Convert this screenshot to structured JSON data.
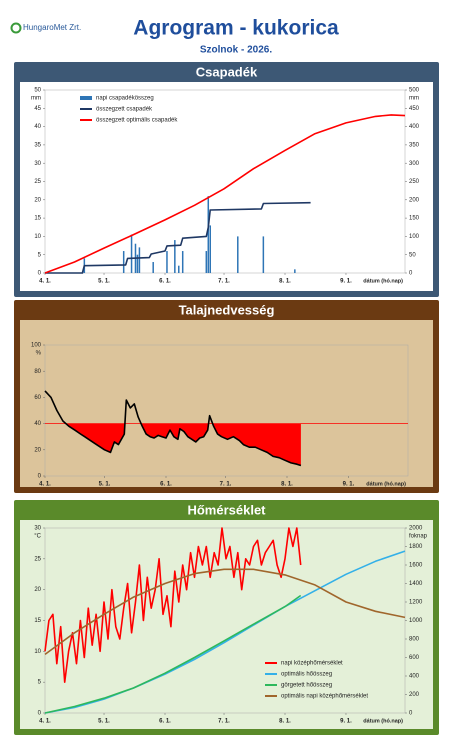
{
  "header": {
    "logo": "HungaroMet Zrt.",
    "title": "Agrogram - kukorica",
    "subtitle": "Szolnok - 2026."
  },
  "chart_data": [
    {
      "type": "combo",
      "title": "Csapadék",
      "frame_color": "#3d5875",
      "background": "#ffffff",
      "plot_background": "#ffffff",
      "xlim": [
        0,
        183
      ],
      "xticks": [
        {
          "value": 0,
          "label": "4. 1."
        },
        {
          "value": 30,
          "label": "5. 1."
        },
        {
          "value": 61,
          "label": "6. 1."
        },
        {
          "value": 91,
          "label": "7. 1."
        },
        {
          "value": 122,
          "label": "8. 1."
        },
        {
          "value": 153,
          "label": "9. 1."
        }
      ],
      "x_label": "dátum (hó.nap)",
      "y_unit": "mm",
      "y2_unit": "mm",
      "ylim": [
        0,
        50
      ],
      "yticks": [
        0,
        5,
        10,
        15,
        20,
        25,
        30,
        35,
        40,
        45,
        50
      ],
      "y2lim": [
        0,
        500
      ],
      "y2ticks": [
        0,
        50,
        100,
        150,
        200,
        250,
        300,
        350,
        400,
        450,
        500
      ],
      "legend": "top-left",
      "series": [
        {
          "name": "napi csapadékösszeg",
          "kind": "bar",
          "color": "#2e75b6",
          "x": [
            20,
            40,
            44,
            46,
            47,
            48,
            55,
            62,
            66,
            68,
            70,
            82,
            83,
            84,
            98,
            111,
            127
          ],
          "values": [
            4,
            6,
            10.5,
            8,
            5,
            7,
            3,
            6,
            9,
            2,
            6,
            6,
            21,
            13,
            10,
            10,
            1
          ]
        },
        {
          "name": "összegzett csapadék",
          "kind": "line",
          "axis": "y2",
          "color": "#1f3864",
          "x": [
            0,
            19,
            20,
            41,
            42,
            53,
            54,
            61,
            62,
            69,
            70,
            82,
            83,
            84,
            110,
            111,
            135
          ],
          "values": [
            0,
            0,
            20,
            22,
            40,
            42,
            52,
            60,
            74,
            76,
            95,
            100,
            125,
            172,
            175,
            190,
            192
          ]
        },
        {
          "name": "összegzett optimális csapadék",
          "kind": "line",
          "axis": "y2",
          "color": "#ff0000",
          "x": [
            0,
            15,
            30,
            45,
            61,
            76,
            91,
            106,
            122,
            137,
            153,
            168,
            176,
            183
          ],
          "values": [
            0,
            30,
            68,
            105,
            145,
            185,
            230,
            285,
            335,
            380,
            410,
            428,
            432,
            430
          ]
        }
      ]
    },
    {
      "type": "area",
      "title": "Talajnedvesség",
      "frame_color": "#6b3a12",
      "background": "#dcc49b",
      "plot_background": "#dcc49b",
      "xlim": [
        0,
        183
      ],
      "xticks": [
        {
          "value": 0,
          "label": "4. 1."
        },
        {
          "value": 30,
          "label": "5. 1."
        },
        {
          "value": 61,
          "label": "6. 1."
        },
        {
          "value": 91,
          "label": "7. 1."
        },
        {
          "value": 122,
          "label": "8. 1."
        },
        {
          "value": 153,
          "label": "9. 1."
        }
      ],
      "x_label": "dátum (hó.nap)",
      "y_unit": "%",
      "ylim": [
        0,
        100
      ],
      "yticks": [
        0,
        20,
        40,
        60,
        80,
        100
      ],
      "threshold": 40,
      "threshold_color": "#ff0000",
      "area_color": "#ff0000",
      "series": [
        {
          "color": "#000000",
          "x": [
            0,
            3,
            6,
            9,
            12,
            15,
            18,
            20,
            22,
            25,
            28,
            30,
            33,
            35,
            37,
            40,
            41,
            43,
            45,
            47,
            49,
            51,
            53,
            55,
            57,
            59,
            61,
            63,
            65,
            67,
            68,
            70,
            72,
            74,
            76,
            78,
            80,
            82,
            83,
            85,
            87,
            89,
            92,
            95,
            98,
            100,
            103,
            106,
            109,
            112,
            115,
            118,
            121,
            124,
            127,
            129
          ],
          "values": [
            65,
            60,
            50,
            42,
            38,
            35,
            32,
            30,
            28,
            25,
            22,
            20,
            18,
            26,
            24,
            32,
            58,
            52,
            55,
            45,
            38,
            32,
            30,
            29,
            31,
            30,
            29,
            35,
            30,
            28,
            36,
            34,
            30,
            28,
            26,
            29,
            30,
            35,
            46,
            38,
            32,
            30,
            28,
            30,
            27,
            24,
            22,
            22,
            20,
            18,
            15,
            14,
            12,
            10,
            9,
            8
          ]
        }
      ]
    },
    {
      "type": "line",
      "title": "Hőmérséklet",
      "frame_color": "#5a8a2a",
      "background": "#e4f0d8",
      "plot_background": "#e4f0d8",
      "xlim": [
        0,
        183
      ],
      "xticks": [
        {
          "value": 0,
          "label": "4. 1."
        },
        {
          "value": 30,
          "label": "5. 1."
        },
        {
          "value": 61,
          "label": "6. 1."
        },
        {
          "value": 91,
          "label": "7. 1."
        },
        {
          "value": 122,
          "label": "8. 1."
        },
        {
          "value": 153,
          "label": "9. 1."
        }
      ],
      "x_label": "dátum (hó.nap)",
      "y_unit": "°C",
      "y2_unit": "foknap",
      "ylim": [
        0,
        30
      ],
      "yticks": [
        0,
        5,
        10,
        15,
        20,
        25,
        30
      ],
      "y2lim": [
        0,
        2000
      ],
      "y2ticks": [
        0,
        200,
        400,
        600,
        800,
        1000,
        1200,
        1400,
        1600,
        1800,
        2000
      ],
      "legend": "bottom-right",
      "series": [
        {
          "name": "napi középhőmérséklet",
          "kind": "line",
          "color": "#ff0000",
          "x": [
            0,
            2,
            4,
            6,
            8,
            10,
            12,
            14,
            16,
            18,
            20,
            22,
            24,
            26,
            28,
            30,
            32,
            34,
            36,
            38,
            40,
            42,
            44,
            46,
            48,
            50,
            52,
            54,
            56,
            58,
            60,
            62,
            64,
            66,
            68,
            70,
            72,
            74,
            76,
            78,
            80,
            82,
            84,
            86,
            88,
            90,
            92,
            94,
            96,
            98,
            100,
            102,
            104,
            106,
            108,
            110,
            112,
            114,
            116,
            118,
            120,
            122,
            124,
            126,
            128,
            130
          ],
          "values": [
            10,
            15,
            16,
            8,
            14,
            5,
            10,
            13,
            8,
            15,
            9,
            17,
            11,
            16,
            10,
            18,
            12,
            20,
            14,
            12,
            17,
            21,
            13,
            18,
            24,
            15,
            22,
            17,
            20,
            25,
            16,
            19,
            14,
            23,
            18,
            24,
            20,
            26,
            22,
            27,
            24,
            27,
            22,
            26,
            24,
            30,
            25,
            27,
            22,
            26,
            20,
            25,
            24,
            27,
            28,
            24,
            26,
            27,
            28,
            24,
            22,
            25,
            30,
            27,
            30,
            24
          ]
        },
        {
          "name": "optimális hőösszeg",
          "kind": "line",
          "axis": "y2",
          "color": "#33b0e8",
          "x": [
            0,
            15,
            30,
            45,
            61,
            76,
            91,
            106,
            122,
            137,
            153,
            168,
            183
          ],
          "values": [
            0,
            60,
            150,
            270,
            420,
            580,
            760,
            950,
            1150,
            1320,
            1500,
            1640,
            1750
          ]
        },
        {
          "name": "görgetett hőösszeg",
          "kind": "line",
          "axis": "y2",
          "color": "#2eb85c",
          "x": [
            0,
            15,
            30,
            45,
            61,
            76,
            91,
            106,
            122,
            130
          ],
          "values": [
            0,
            70,
            160,
            270,
            430,
            600,
            780,
            960,
            1150,
            1270
          ]
        },
        {
          "name": "optimális napi középhőmérséklet",
          "kind": "line",
          "color": "#a0662c",
          "x": [
            0,
            15,
            30,
            45,
            61,
            76,
            91,
            106,
            122,
            137,
            153,
            168,
            183
          ],
          "values": [
            9.5,
            13,
            16,
            18.8,
            21,
            22.6,
            23.3,
            23.3,
            22.4,
            20.8,
            18,
            16.5,
            15.5
          ]
        }
      ]
    }
  ]
}
